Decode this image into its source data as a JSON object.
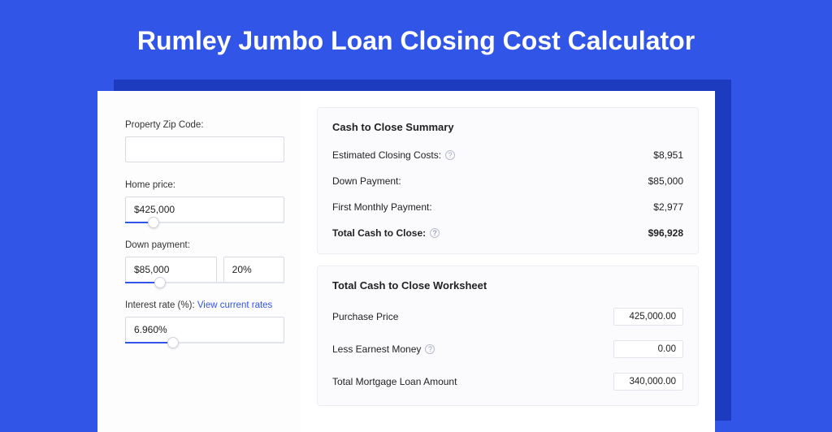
{
  "colors": {
    "bg": "#3155e6",
    "shadow": "#1d3bbf",
    "card": "#ffffff",
    "panel": "#fbfbfd",
    "border": "#e2e4ec",
    "link": "#3155e6",
    "text": "#222222"
  },
  "title": "Rumley Jumbo Loan Closing Cost Calculator",
  "left": {
    "zip": {
      "label": "Property Zip Code:",
      "value": ""
    },
    "home_price": {
      "label": "Home price:",
      "value": "$425,000",
      "slider_pct": 18
    },
    "down_payment": {
      "label": "Down payment:",
      "value": "$85,000",
      "pct_value": "20%",
      "slider_pct": 22
    },
    "interest": {
      "label": "Interest rate (%):",
      "link_text": "View current rates",
      "value": "6.960%",
      "slider_pct": 30
    }
  },
  "summary": {
    "heading": "Cash to Close Summary",
    "rows": [
      {
        "label": "Estimated Closing Costs:",
        "help": true,
        "value": "$8,951",
        "bold": false
      },
      {
        "label": "Down Payment:",
        "help": false,
        "value": "$85,000",
        "bold": false
      },
      {
        "label": "First Monthly Payment:",
        "help": false,
        "value": "$2,977",
        "bold": false
      },
      {
        "label": "Total Cash to Close:",
        "help": true,
        "value": "$96,928",
        "bold": true
      }
    ]
  },
  "worksheet": {
    "heading": "Total Cash to Close Worksheet",
    "rows": [
      {
        "label": "Purchase Price",
        "help": false,
        "value": "425,000.00"
      },
      {
        "label": "Less Earnest Money",
        "help": true,
        "value": "0.00"
      },
      {
        "label": "Total Mortgage Loan Amount",
        "help": false,
        "value": "340,000.00"
      }
    ]
  }
}
